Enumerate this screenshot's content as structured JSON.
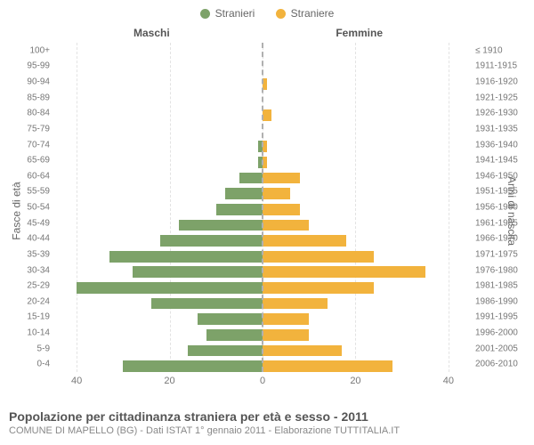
{
  "legend": {
    "male": {
      "label": "Stranieri",
      "color": "#7da269"
    },
    "female": {
      "label": "Straniere",
      "color": "#f2b33d"
    }
  },
  "columns": {
    "left": "Maschi",
    "right": "Femmine"
  },
  "axis_labels": {
    "left": "Fasce di età",
    "right": "Anni di nascita"
  },
  "x": {
    "max": 45,
    "ticks_left": [
      40,
      20,
      0
    ],
    "ticks_right": [
      0,
      20,
      40
    ]
  },
  "rows": [
    {
      "age": "100+",
      "birth": "≤ 1910",
      "m": 0,
      "f": 0
    },
    {
      "age": "95-99",
      "birth": "1911-1915",
      "m": 0,
      "f": 0
    },
    {
      "age": "90-94",
      "birth": "1916-1920",
      "m": 0,
      "f": 1
    },
    {
      "age": "85-89",
      "birth": "1921-1925",
      "m": 0,
      "f": 0
    },
    {
      "age": "80-84",
      "birth": "1926-1930",
      "m": 0,
      "f": 2
    },
    {
      "age": "75-79",
      "birth": "1931-1935",
      "m": 0,
      "f": 0
    },
    {
      "age": "70-74",
      "birth": "1936-1940",
      "m": 1,
      "f": 1
    },
    {
      "age": "65-69",
      "birth": "1941-1945",
      "m": 1,
      "f": 1
    },
    {
      "age": "60-64",
      "birth": "1946-1950",
      "m": 5,
      "f": 8
    },
    {
      "age": "55-59",
      "birth": "1951-1955",
      "m": 8,
      "f": 6
    },
    {
      "age": "50-54",
      "birth": "1956-1960",
      "m": 10,
      "f": 8
    },
    {
      "age": "45-49",
      "birth": "1961-1965",
      "m": 18,
      "f": 10
    },
    {
      "age": "40-44",
      "birth": "1966-1970",
      "m": 22,
      "f": 18
    },
    {
      "age": "35-39",
      "birth": "1971-1975",
      "m": 33,
      "f": 24
    },
    {
      "age": "30-34",
      "birth": "1976-1980",
      "m": 28,
      "f": 35
    },
    {
      "age": "25-29",
      "birth": "1981-1985",
      "m": 40,
      "f": 24
    },
    {
      "age": "20-24",
      "birth": "1986-1990",
      "m": 24,
      "f": 14
    },
    {
      "age": "15-19",
      "birth": "1991-1995",
      "m": 14,
      "f": 10
    },
    {
      "age": "10-14",
      "birth": "1996-2000",
      "m": 12,
      "f": 10
    },
    {
      "age": "5-9",
      "birth": "2001-2005",
      "m": 16,
      "f": 17
    },
    {
      "age": "0-4",
      "birth": "2006-2010",
      "m": 30,
      "f": 28
    }
  ],
  "styling": {
    "chart_type": "population-pyramid",
    "bar_border": "rgba(0,0,0,0.08)",
    "grid_color": "#e3e3e3",
    "center_line_color": "#b0b0b0",
    "background": "#ffffff",
    "tick_fontsize": 10,
    "legend_fontsize": 12,
    "title_fontsize": 14,
    "sub_fontsize": 11
  },
  "footer": {
    "title": "Popolazione per cittadinanza straniera per età e sesso - 2011",
    "sub": "COMUNE DI MAPELLO (BG) - Dati ISTAT 1° gennaio 2011 - Elaborazione TUTTITALIA.IT"
  }
}
